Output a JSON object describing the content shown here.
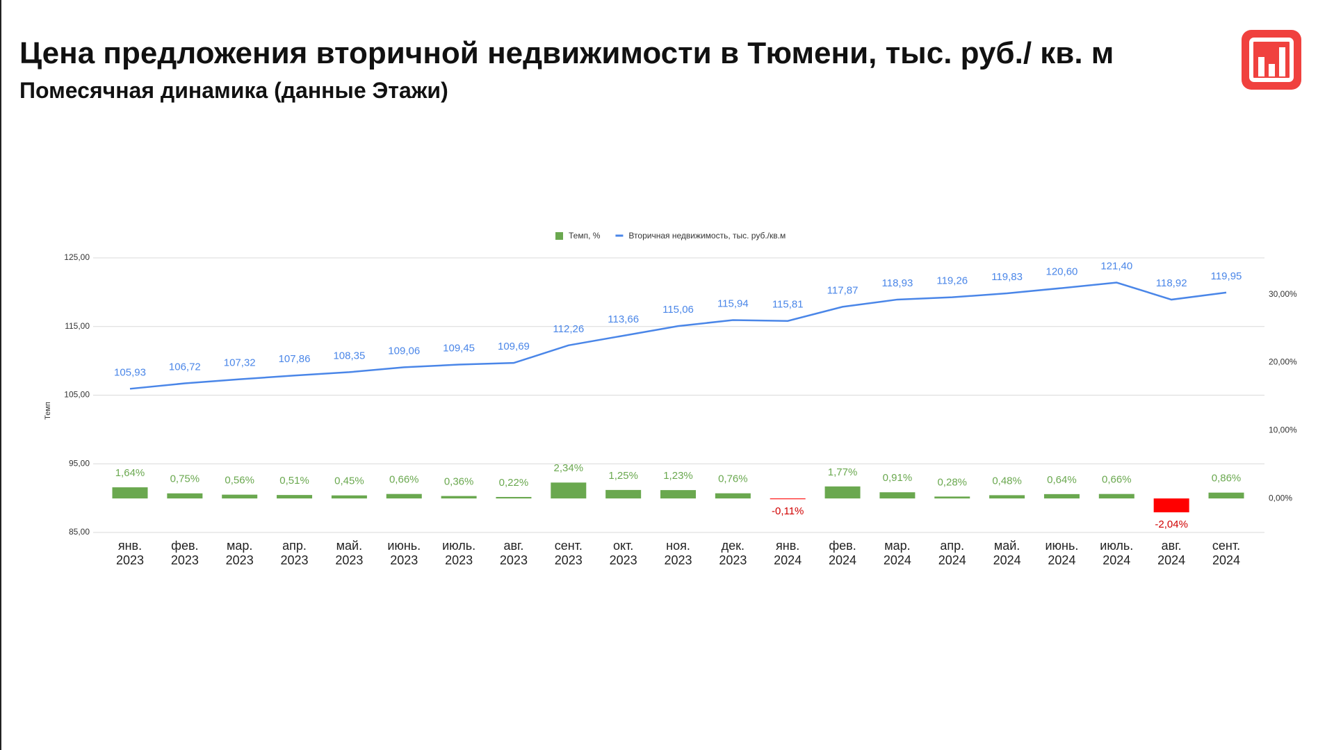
{
  "chart_data": {
    "type": "combo",
    "title": "Цена предложения вторичной недвижимости в Тюмени, тыс. руб./ кв. м",
    "subtitle": "Помесячная динамика (данные Этажи)",
    "ylabel": "Темп",
    "categories": [
      "янв. 2023",
      "фев. 2023",
      "мар. 2023",
      "апр. 2023",
      "май. 2023",
      "июнь. 2023",
      "июль. 2023",
      "авг. 2023",
      "сент. 2023",
      "окт. 2023",
      "ноя. 2023",
      "дек. 2023",
      "янв. 2024",
      "фев. 2024",
      "мар. 2024",
      "апр. 2024",
      "май. 2024",
      "июнь. 2024",
      "июль. 2024",
      "авг. 2024",
      "сент. 2024"
    ],
    "series": [
      {
        "name": "Темп, %",
        "type": "bar",
        "axis": "y2",
        "color": "#6aa84f",
        "negative_color": "#ff0000",
        "values": [
          1.64,
          0.75,
          0.56,
          0.51,
          0.45,
          0.66,
          0.36,
          0.22,
          2.34,
          1.25,
          1.23,
          0.76,
          -0.11,
          1.77,
          0.91,
          0.28,
          0.48,
          0.64,
          0.66,
          -2.04,
          0.86
        ],
        "value_labels": [
          "1,64%",
          "0,75%",
          "0,56%",
          "0,51%",
          "0,45%",
          "0,66%",
          "0,36%",
          "0,22%",
          "2,34%",
          "1,25%",
          "1,23%",
          "0,76%",
          "-0,11%",
          "1,77%",
          "0,91%",
          "0,28%",
          "0,48%",
          "0,64%",
          "0,66%",
          "-2,04%",
          "0,86%"
        ]
      },
      {
        "name": "Вторичная недвижимость, тыс. руб./кв.м",
        "type": "line",
        "color": "#4a86e8",
        "values": [
          105.93,
          106.72,
          107.32,
          107.86,
          108.35,
          109.06,
          109.45,
          109.69,
          112.26,
          113.66,
          115.06,
          115.94,
          115.81,
          117.87,
          118.93,
          119.26,
          119.83,
          120.6,
          121.4,
          118.92,
          119.95
        ],
        "value_labels": [
          "105,93",
          "106,72",
          "107,32",
          "107,86",
          "108,35",
          "109,06",
          "109,45",
          "109,69",
          "112,26",
          "113,66",
          "115,06",
          "115,94",
          "115,81",
          "117,87",
          "118,93",
          "119,26",
          "119,83",
          "120,60",
          "121,40",
          "118,92",
          "119,95"
        ]
      }
    ],
    "ylim": [
      85,
      125
    ],
    "yticks": [
      {
        "value": 85,
        "label": "85,00"
      },
      {
        "value": 95,
        "label": "95,00"
      },
      {
        "value": 105,
        "label": "105,00"
      },
      {
        "value": 115,
        "label": "115,00"
      },
      {
        "value": 125,
        "label": "125,00"
      }
    ],
    "y2lim": [
      -5,
      35.4
    ],
    "y2ticks": [
      {
        "value": 0,
        "label": "0,00%"
      },
      {
        "value": 10,
        "label": "10,00%"
      },
      {
        "value": 20,
        "label": "20,00%"
      },
      {
        "value": 30,
        "label": "30,00%"
      }
    ],
    "grid": true,
    "legend": "top"
  }
}
